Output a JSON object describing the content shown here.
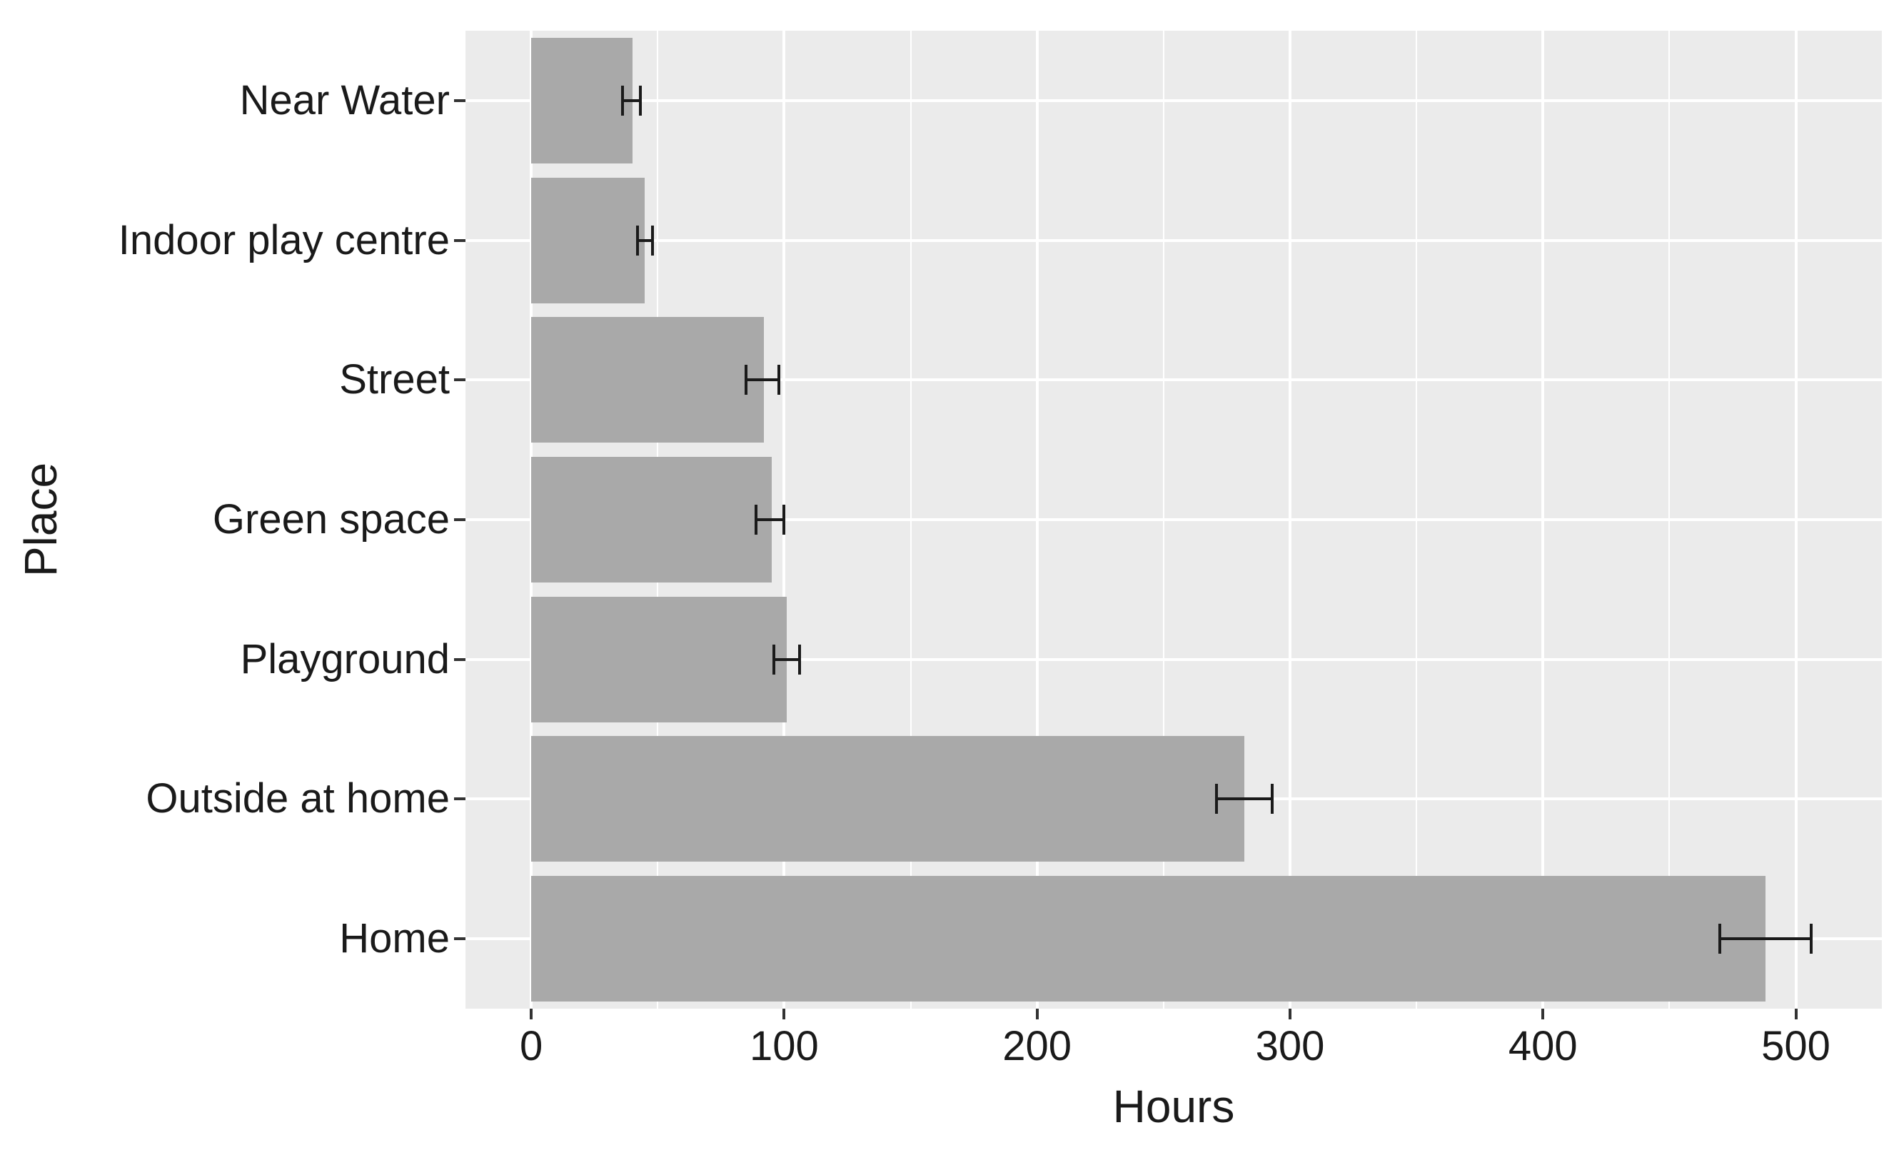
{
  "figure": {
    "background": "#FFFFFF",
    "panel_background": "#EBEBEB",
    "gridline_color": "#FFFFFF",
    "bar_color": "#A9A9A9",
    "errorbar_color": "#1A1A1A",
    "text_color": "#1A1A1A",
    "tick_mark_color": "#333333"
  },
  "chart_data": {
    "type": "bar",
    "orientation": "horizontal",
    "title": "",
    "xlabel": "Hours",
    "ylabel": "Place",
    "categories_top_to_bottom": [
      "Near Water",
      "Indoor play centre",
      "Street",
      "Green space",
      "Playground",
      "Outside at home",
      "Home"
    ],
    "values": [
      40,
      45,
      92,
      95,
      101,
      282,
      488
    ],
    "error_bars": [
      {
        "low": 36,
        "high": 43
      },
      {
        "low": 42,
        "high": 48
      },
      {
        "low": 85,
        "high": 98
      },
      {
        "low": 89,
        "high": 100
      },
      {
        "low": 96,
        "high": 106
      },
      {
        "low": 271,
        "high": 293
      },
      {
        "low": 470,
        "high": 506
      }
    ],
    "x_ticks": [
      0,
      100,
      200,
      300,
      400,
      500
    ],
    "x_minor_gridlines": [
      50,
      150,
      250,
      350,
      450
    ],
    "xlim": [
      -26,
      534
    ],
    "grid": true,
    "legend": false,
    "bar_width_fraction": 0.9
  }
}
